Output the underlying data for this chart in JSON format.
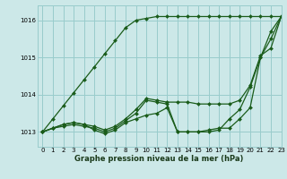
{
  "title": "Graphe pression niveau de la mer (hPa)",
  "bg_color": "#cce8e8",
  "grid_color": "#99cccc",
  "line_color": "#1a5c1a",
  "marker_color": "#1a5c1a",
  "xlim": [
    -0.5,
    23
  ],
  "ylim": [
    1012.6,
    1016.4
  ],
  "yticks": [
    1013,
    1014,
    1015,
    1016
  ],
  "xticks": [
    0,
    1,
    2,
    3,
    4,
    5,
    6,
    7,
    8,
    9,
    10,
    11,
    12,
    13,
    14,
    15,
    16,
    17,
    18,
    19,
    20,
    21,
    22,
    23
  ],
  "series": [
    [
      1013.0,
      1013.1,
      1013.15,
      1013.2,
      1013.15,
      1013.1,
      1013.0,
      1013.1,
      1013.3,
      1013.5,
      1013.85,
      1013.8,
      1013.75,
      1013.0,
      1013.0,
      1013.0,
      1013.05,
      1013.1,
      1013.1,
      1013.35,
      1013.65,
      1015.0,
      1015.5,
      1016.1
    ],
    [
      1013.0,
      1013.1,
      1013.2,
      1013.25,
      1013.2,
      1013.15,
      1013.05,
      1013.15,
      1013.35,
      1013.6,
      1013.9,
      1013.85,
      1013.8,
      1013.8,
      1013.8,
      1013.75,
      1013.75,
      1013.75,
      1013.75,
      1013.85,
      1014.25,
      1015.05,
      1015.25,
      1016.1
    ],
    [
      1013.0,
      1013.1,
      1013.2,
      1013.25,
      1013.2,
      1013.05,
      1012.95,
      1013.05,
      1013.25,
      1013.35,
      1013.45,
      1013.5,
      1013.65,
      1013.0,
      1013.0,
      1013.0,
      1013.0,
      1013.05,
      1013.35,
      1013.6,
      1014.2,
      1015.0,
      1015.7,
      1016.1
    ],
    [
      1013.0,
      1013.35,
      1013.7,
      1014.05,
      1014.4,
      1014.75,
      1015.1,
      1015.45,
      1015.8,
      1016.0,
      1016.05,
      1016.1,
      1016.1,
      1016.1,
      1016.1,
      1016.1,
      1016.1,
      1016.1,
      1016.1,
      1016.1,
      1016.1,
      1016.1,
      1016.1,
      1016.1
    ]
  ]
}
